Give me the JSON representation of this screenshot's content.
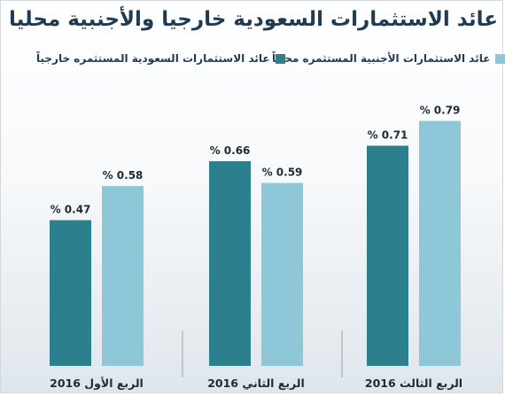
{
  "colors": {
    "series1": "#2c7f8c",
    "series2": "#8ec7d8",
    "divider": "#9aa4ab"
  },
  "chart_data": {
    "type": "bar",
    "title": "عائد الاستثمارات السعودية خارجيا والأجنبية محليا",
    "categories": [
      "الربع الأول 2016",
      "الربع الثاني 2016",
      "الربع الثالث 2016"
    ],
    "series": [
      {
        "name": "عائد الاستثمارات السعودية المستثمره خارجياً",
        "values": [
          0.47,
          0.66,
          0.71
        ],
        "labels": [
          "% 0.47",
          "% 0.66",
          "% 0.71"
        ]
      },
      {
        "name": "عائد الاستثمارات الأجنبية المستثمره محلياً",
        "values": [
          0.58,
          0.59,
          0.79
        ],
        "labels": [
          "% 0.58",
          "% 0.59",
          "% 0.79"
        ]
      }
    ],
    "ylim": [
      0,
      0.8
    ],
    "legend": "top",
    "grid": false
  }
}
